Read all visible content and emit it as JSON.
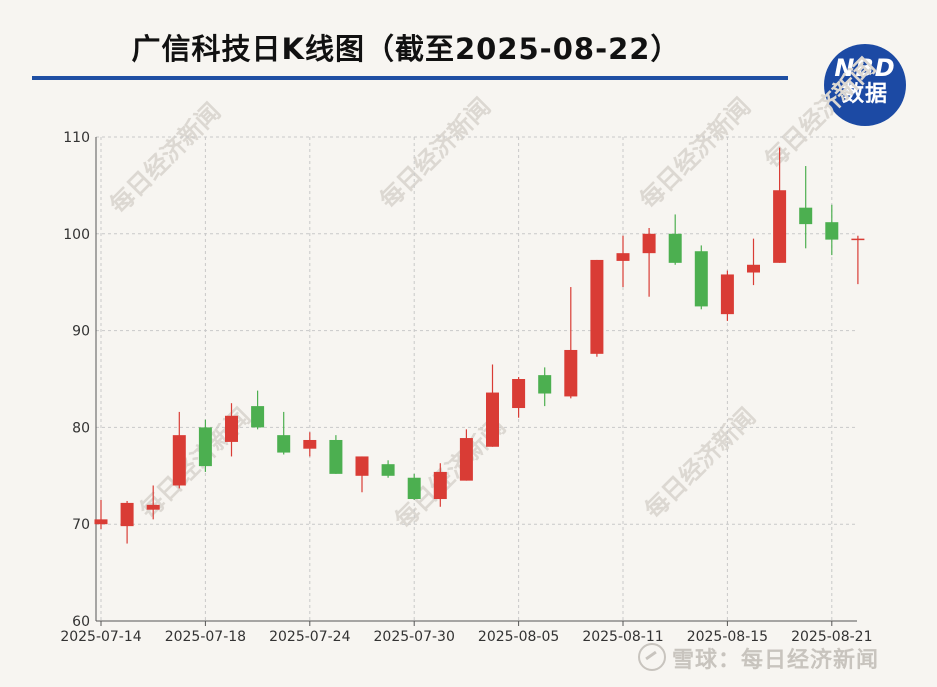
{
  "title": "广信科技日K线图（截至2025-08-22）",
  "logo": {
    "line1": "NBD",
    "line2": "数据"
  },
  "watermark": "每日经济新闻",
  "footer": {
    "text": "雪球：每日经济新闻"
  },
  "colors": {
    "up": "#d93c35",
    "down": "#4caf50",
    "title_rule": "#1f4fa3",
    "logo_bg": "#1c4aa4",
    "grid": "#c9c9c9"
  },
  "chart_data": {
    "type": "candlestick",
    "ylim": [
      60,
      110
    ],
    "yticks": [
      60,
      70,
      80,
      90,
      100,
      110
    ],
    "xtick_labels": [
      "2025-07-14",
      "2025-07-18",
      "2025-07-24",
      "2025-07-30",
      "2025-08-05",
      "2025-08-11",
      "2025-08-15",
      "2025-08-21"
    ],
    "xtick_indices": [
      0,
      4,
      8,
      12,
      16,
      20,
      24,
      28
    ],
    "fields": [
      "date",
      "open",
      "close",
      "low",
      "high"
    ],
    "candles": [
      [
        "2025-07-14",
        70.0,
        70.5,
        69.5,
        72.5
      ],
      [
        "2025-07-15",
        69.8,
        72.2,
        68.0,
        72.4
      ],
      [
        "2025-07-16",
        71.5,
        72.0,
        70.5,
        74.0
      ],
      [
        "2025-07-17",
        74.0,
        79.2,
        73.7,
        81.6
      ],
      [
        "2025-07-18",
        80.0,
        76.0,
        75.4,
        80.8
      ],
      [
        "2025-07-21",
        78.5,
        81.2,
        77.0,
        82.5
      ],
      [
        "2025-07-22",
        82.2,
        80.0,
        79.8,
        83.8
      ],
      [
        "2025-07-23",
        79.2,
        77.4,
        77.2,
        81.6
      ],
      [
        "2025-07-24",
        77.8,
        78.7,
        77.0,
        79.5
      ],
      [
        "2025-07-25",
        78.7,
        75.2,
        75.2,
        79.2
      ],
      [
        "2025-07-28",
        75.0,
        77.0,
        73.3,
        77.0
      ],
      [
        "2025-07-29",
        76.2,
        75.0,
        74.8,
        76.6
      ],
      [
        "2025-07-30",
        74.8,
        72.6,
        72.5,
        75.2
      ],
      [
        "2025-07-31",
        72.6,
        75.4,
        71.8,
        76.3
      ],
      [
        "2025-08-01",
        74.5,
        78.9,
        74.5,
        79.8
      ],
      [
        "2025-08-04",
        78.0,
        83.6,
        78.0,
        86.5
      ],
      [
        "2025-08-05",
        82.0,
        85.0,
        81.0,
        85.2
      ],
      [
        "2025-08-06",
        85.4,
        83.5,
        82.2,
        86.2
      ],
      [
        "2025-08-07",
        83.2,
        88.0,
        83.0,
        94.5
      ],
      [
        "2025-08-08",
        87.6,
        97.3,
        87.3,
        97.3
      ],
      [
        "2025-08-11",
        97.2,
        98.0,
        94.5,
        99.8
      ],
      [
        "2025-08-12",
        98.0,
        100.0,
        93.5,
        100.6
      ],
      [
        "2025-08-13",
        100.0,
        97.0,
        96.8,
        102.0
      ],
      [
        "2025-08-14",
        98.2,
        92.5,
        92.2,
        98.8
      ],
      [
        "2025-08-15",
        91.7,
        95.8,
        91.0,
        96.2
      ],
      [
        "2025-08-18",
        96.0,
        96.8,
        94.7,
        99.5
      ],
      [
        "2025-08-19",
        97.0,
        104.5,
        97.0,
        108.9
      ],
      [
        "2025-08-20",
        102.7,
        101.0,
        98.5,
        107.0
      ],
      [
        "2025-08-21",
        101.2,
        99.4,
        97.8,
        103.0
      ],
      [
        "2025-08-22",
        99.4,
        99.5,
        94.8,
        99.8
      ]
    ]
  }
}
